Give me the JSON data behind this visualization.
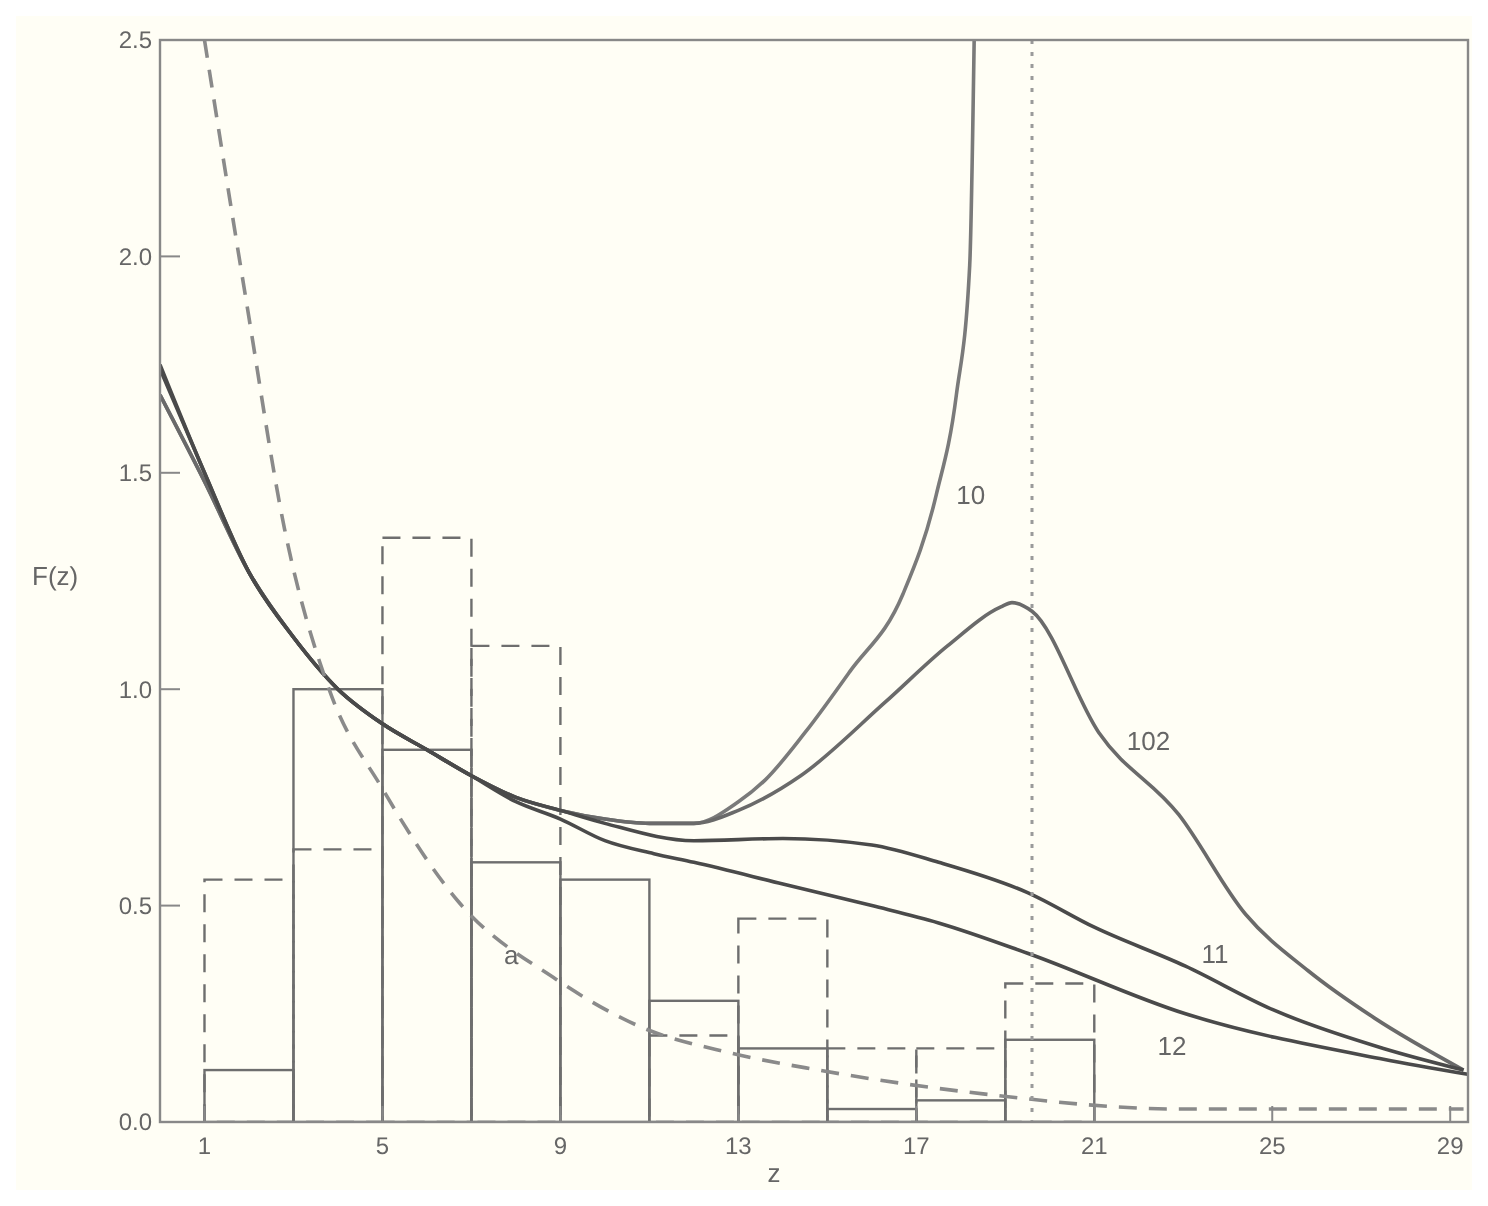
{
  "chart_data": {
    "type": "line",
    "xlabel": "z",
    "ylabel": "F(z)",
    "xlim": [
      0,
      29.4
    ],
    "ylim": [
      0,
      2.5
    ],
    "xticks": [
      1,
      5,
      9,
      13,
      17,
      21,
      25,
      29
    ],
    "yticks": [
      {
        "value": 0,
        "label": "0.0"
      },
      {
        "value": 0.5,
        "label": "0.5"
      },
      {
        "value": 1,
        "label": "1.0"
      },
      {
        "value": 1.5,
        "label": "1.5"
      },
      {
        "value": 2,
        "label": "2.0"
      },
      {
        "value": 2.5,
        "label": "2.5"
      }
    ],
    "bins": [
      1,
      3,
      5,
      7,
      9,
      11,
      13,
      15,
      17,
      19,
      21
    ],
    "series": [
      {
        "type": "histogram",
        "color": "#6e6e6e",
        "line_style": "solid",
        "values": [
          0.12,
          1.0,
          0.86,
          0.6,
          0.56,
          0.28,
          0.17,
          0.03,
          0.05,
          0.19
        ]
      },
      {
        "type": "histogram",
        "color": "#6e6e6e",
        "line_style": "dashed",
        "values": [
          0.56,
          0.63,
          1.35,
          1.1,
          null,
          0.2,
          0.47,
          0.17,
          0.17,
          0.32
        ]
      },
      {
        "name": "10",
        "color": "#7a7a7a",
        "line_style": "solid",
        "x": [
          0,
          1,
          2,
          3,
          4,
          5,
          6,
          7,
          8,
          9,
          10,
          11,
          12,
          13,
          13.6,
          14.5,
          15.5,
          16.7,
          17.45,
          17.9,
          18.2,
          18.3
        ],
        "values": [
          1.68,
          1.48,
          1.27,
          1.12,
          1.0,
          0.92,
          0.86,
          0.8,
          0.75,
          0.72,
          0.7,
          0.69,
          0.69,
          0.74,
          0.79,
          0.9,
          1.04,
          1.22,
          1.45,
          1.68,
          1.98,
          2.5
        ]
      },
      {
        "name": "102",
        "color": "#6a6a6a",
        "line_style": "solid",
        "x": [
          0,
          1,
          2,
          3,
          4,
          5,
          6,
          7,
          8,
          9,
          10,
          11,
          12,
          13,
          14.4,
          16.3,
          17.7,
          18.9,
          19.15,
          19.6,
          21.1,
          22.9,
          24.4,
          25.8,
          27.3,
          29.3
        ],
        "values": [
          1.68,
          1.48,
          1.27,
          1.12,
          1.0,
          0.92,
          0.86,
          0.8,
          0.75,
          0.72,
          0.7,
          0.69,
          0.69,
          0.72,
          0.8,
          0.97,
          1.1,
          1.19,
          1.2,
          1.18,
          0.9,
          0.71,
          0.48,
          0.35,
          0.24,
          0.12
        ]
      },
      {
        "name": "11",
        "color": "#4a4a4a",
        "line_style": "solid",
        "x": [
          0,
          1,
          2,
          3,
          4,
          5,
          6,
          7,
          8,
          9,
          10,
          12,
          14,
          16,
          17.5,
          19.5,
          21,
          23.05,
          25,
          27.5,
          29.3
        ],
        "values": [
          1.75,
          1.5,
          1.27,
          1.12,
          1.0,
          0.92,
          0.86,
          0.8,
          0.75,
          0.72,
          0.69,
          0.65,
          0.655,
          0.64,
          0.6,
          0.53,
          0.45,
          0.36,
          0.26,
          0.17,
          0.12
        ]
      },
      {
        "name": "12",
        "color": "#4a4a4a",
        "line_style": "solid",
        "x": [
          0,
          1,
          2,
          3,
          4,
          5,
          6,
          7,
          8,
          9,
          10,
          11.1,
          12,
          14,
          16,
          17.5,
          19.5,
          23.05,
          27.5,
          29.4
        ],
        "values": [
          1.74,
          1.5,
          1.27,
          1.12,
          1.0,
          0.92,
          0.86,
          0.8,
          0.74,
          0.7,
          0.65,
          0.62,
          0.6,
          0.55,
          0.5,
          0.46,
          0.39,
          0.25,
          0.145,
          0.11
        ]
      },
      {
        "name": "a",
        "color": "#8a8a8a",
        "line_style": "dashed",
        "x": [
          1.0,
          1.95,
          2.8,
          3.8,
          5.0,
          6.7,
          8.9,
          10.8,
          12.8,
          14.8,
          18.5,
          22.9,
          29.3
        ],
        "values": [
          2.5,
          1.89,
          1.37,
          1.0,
          0.77,
          0.51,
          0.33,
          0.22,
          0.16,
          0.12,
          0.065,
          0.03,
          0.03
        ]
      }
    ],
    "ref_lines": [
      {
        "axis": "x",
        "value": 19.6,
        "color": "#9a9a9a",
        "line_style": "dotted"
      }
    ],
    "grid": false,
    "legend": false
  }
}
